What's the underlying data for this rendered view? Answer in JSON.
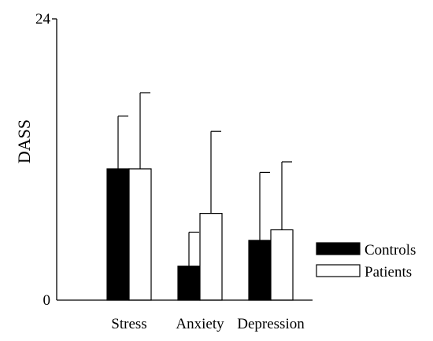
{
  "chart_data": {
    "type": "bar",
    "title": "",
    "xlabel": "",
    "ylabel": "DASS",
    "ylim": [
      0,
      24
    ],
    "yticks": [
      "0",
      "24"
    ],
    "categories": [
      "Stress",
      "Anxiety",
      "Depression"
    ],
    "series": [
      {
        "name": "Controls",
        "values": [
          11.2,
          2.9,
          5.1
        ],
        "errors": [
          4.5,
          2.9,
          5.8
        ],
        "color": "#000000"
      },
      {
        "name": "Patients",
        "values": [
          11.2,
          7.4,
          6.0
        ],
        "errors": [
          6.5,
          7.0,
          5.8
        ],
        "color": "#ffffff"
      }
    ],
    "grid": false,
    "legend_position": "right"
  }
}
